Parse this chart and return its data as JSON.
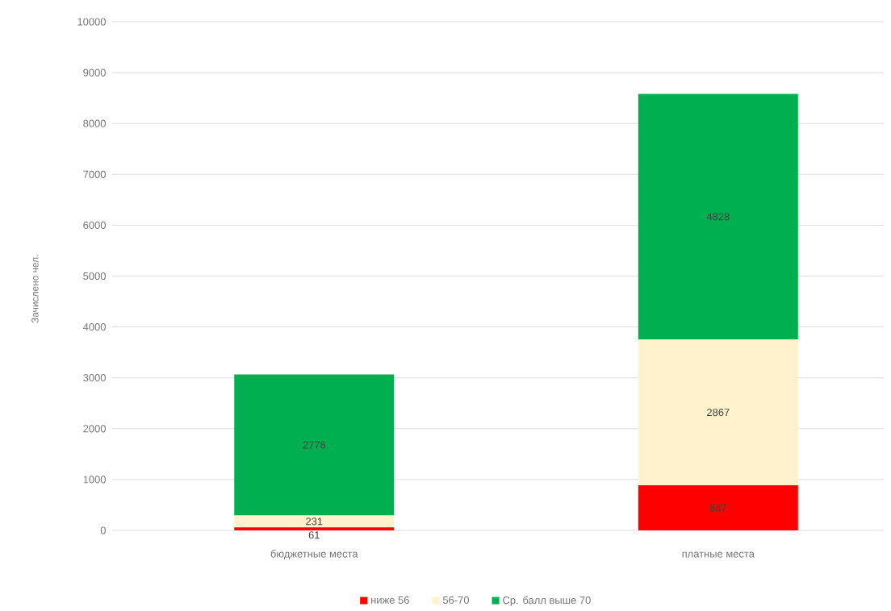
{
  "chart_data": {
    "type": "bar",
    "stacked": true,
    "ylabel": "Зачислено чел.",
    "categories": [
      "бюджетные места",
      "платные места"
    ],
    "series": [
      {
        "name": "ниже 56",
        "color": "#ff0000",
        "values": [
          61,
          887
        ]
      },
      {
        "name": "56-70",
        "color": "#fff2cc",
        "values": [
          231,
          2867
        ]
      },
      {
        "name": "Ср. балл выше 70",
        "color": "#00b050",
        "values": [
          2776,
          4828
        ]
      }
    ],
    "ylim": [
      0,
      10000
    ],
    "yticks": [
      0,
      1000,
      2000,
      3000,
      4000,
      5000,
      6000,
      7000,
      8000,
      9000,
      10000
    ],
    "grid": "y",
    "legend": "bottom",
    "data_labels": true
  }
}
